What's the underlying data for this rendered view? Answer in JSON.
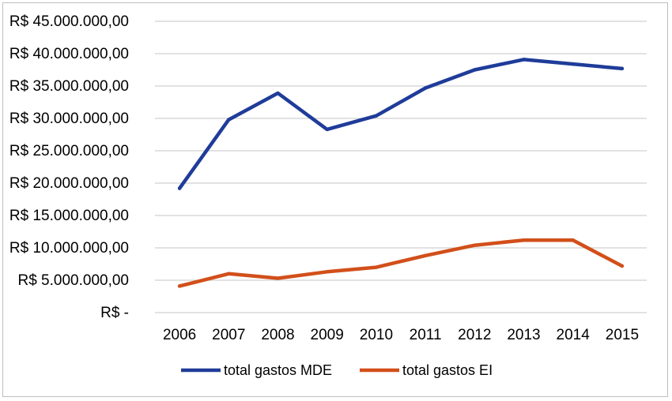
{
  "chart_data": {
    "type": "line",
    "title": "",
    "xlabel": "",
    "ylabel": "",
    "x": [
      "2006",
      "2007",
      "2008",
      "2009",
      "2010",
      "2011",
      "2012",
      "2013",
      "2014",
      "2015"
    ],
    "ylim": [
      0,
      45000000
    ],
    "ytick_values": [
      0,
      5000000,
      10000000,
      15000000,
      20000000,
      25000000,
      30000000,
      35000000,
      40000000,
      45000000
    ],
    "ytick_labels": [
      "R$ -",
      "R$ 5.000.000,00",
      "R$ 10.000.000,00",
      "R$ 15.000.000,00",
      "R$ 20.000.000,00",
      "R$ 25.000.000,00",
      "R$ 30.000.000,00",
      "R$ 35.000.000,00",
      "R$ 40.000.000,00",
      "R$ 45.000.000,00"
    ],
    "grid": true,
    "legend_position": "bottom",
    "series": [
      {
        "name": "total gastos MDE",
        "color": "#1f3c99",
        "values": [
          19200000,
          29800000,
          33900000,
          28300000,
          30400000,
          34700000,
          37500000,
          39100000,
          38400000,
          37700000
        ]
      },
      {
        "name": "total gastos EI",
        "color": "#d24f1a",
        "values": [
          4100000,
          6000000,
          5300000,
          6300000,
          7000000,
          8800000,
          10400000,
          11200000,
          11200000,
          7200000
        ]
      }
    ]
  }
}
